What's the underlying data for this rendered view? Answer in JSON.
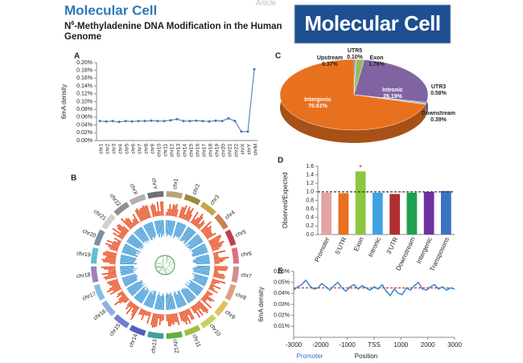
{
  "header": {
    "journal": "Molecular Cell",
    "article_type": "Article",
    "title_prefix": "N",
    "title_superscript": "6",
    "title_line1": "-Methyladenine DNA Modification in the Human",
    "title_line2": "Genome",
    "logo": "Molecular Cell"
  },
  "chart_data": [
    {
      "type": "line",
      "panel": "A",
      "ylabel": "6mA density",
      "color": "#4a6fb5",
      "markers": true,
      "categories": [
        "chr1",
        "chr2",
        "chr3",
        "chr4",
        "chr5",
        "chr6",
        "chr7",
        "chr8",
        "chr9",
        "chr10",
        "chr11",
        "chr12",
        "chr13",
        "chr14",
        "chr15",
        "chr16",
        "chr17",
        "chr18",
        "chr19",
        "chr20",
        "chr21",
        "chr22",
        "chrX",
        "chrY",
        "chrM"
      ],
      "values": [
        0.05,
        0.049,
        0.05,
        0.048,
        0.05,
        0.049,
        0.05,
        0.05,
        0.051,
        0.05,
        0.05,
        0.052,
        0.055,
        0.05,
        0.05,
        0.051,
        0.05,
        0.049,
        0.051,
        0.05,
        0.057,
        0.05,
        0.023,
        0.023,
        0.183
      ],
      "ylim": [
        0,
        0.2
      ],
      "yticks": [
        {
          "value": 0,
          "label": "0.00%"
        },
        {
          "value": 0.02,
          "label": "0.02%"
        },
        {
          "value": 0.04,
          "label": "0.04%"
        },
        {
          "value": 0.06,
          "label": "0.06%"
        },
        {
          "value": 0.08,
          "label": "0.08%"
        },
        {
          "value": 0.1,
          "label": "0.10%"
        },
        {
          "value": 0.12,
          "label": "0.12%"
        },
        {
          "value": 0.14,
          "label": "0.14%"
        },
        {
          "value": 0.16,
          "label": "0.16%"
        },
        {
          "value": 0.18,
          "label": "0.18%"
        },
        {
          "value": 0.2,
          "label": "0.20%"
        }
      ]
    },
    {
      "type": "circos",
      "panel": "B",
      "labels": [
        "chr1",
        "chr2",
        "chr3",
        "chr4",
        "chr5",
        "chr6",
        "chr7",
        "chr8",
        "chr9",
        "chr10",
        "chr11",
        "chr12",
        "chr13",
        "chr14",
        "chr15",
        "chr16",
        "chr17",
        "chr18",
        "chr19",
        "chr20",
        "chr21",
        "chr22",
        "chrX",
        "chrY"
      ]
    },
    {
      "type": "pie",
      "panel": "C",
      "three_d": true,
      "categories": [
        "Upstream",
        "UTR5",
        "Exon",
        "Intronic",
        "UTR3",
        "Downstream",
        "Intergenic"
      ],
      "values": [
        0.37,
        0.1,
        1.76,
        26.19,
        0.58,
        0.39,
        70.61
      ],
      "value_labels": [
        "0.37%",
        "0.10%",
        "1.76%",
        "26.19%",
        "0.58%",
        "0.39%",
        "70.61%"
      ],
      "colors": [
        "#4f7fbf",
        "#c0504d",
        "#9bbb59",
        "#8064a2",
        "#4bacc6",
        "#f79646",
        "#e8711f"
      ]
    },
    {
      "type": "bar",
      "panel": "D",
      "ylabel": "Observed/Expected",
      "categories": [
        "Promoter",
        "5'UTR",
        "Exon",
        "Intronic",
        "3'UTR",
        "Downstream",
        "Intergenic",
        "Transposons"
      ],
      "values": [
        0.98,
        0.97,
        1.48,
        0.98,
        0.95,
        0.98,
        1.0,
        1.02
      ],
      "colors": [
        "#e3a3a3",
        "#e8711f",
        "#8dc63f",
        "#3ea3e0",
        "#b02e2e",
        "#1fa04f",
        "#7030a0",
        "#3a74c2"
      ],
      "ylim": [
        0,
        1.6
      ],
      "yticks": [
        {
          "value": 0,
          "label": "0.0"
        },
        0.2,
        0.4,
        0.6,
        0.8,
        {
          "value": 1,
          "label": "1.0"
        },
        1.2,
        1.4,
        1.6
      ],
      "reference_line": 1,
      "annotation": "*"
    },
    {
      "type": "line",
      "panel": "E",
      "ylabel": "6mA density",
      "xlabel": "Position",
      "annotation": "Promoter",
      "color": "#3f8fd0",
      "x": [
        -3000,
        -2850,
        -2700,
        -2550,
        -2400,
        -2250,
        -2100,
        -1950,
        -1800,
        -1650,
        -1500,
        -1350,
        -1200,
        -1050,
        -900,
        -750,
        -600,
        -450,
        -300,
        -150,
        0,
        150,
        300,
        450,
        600,
        750,
        900,
        1050,
        1200,
        1350,
        1500,
        1650,
        1800,
        1950,
        2100,
        2250,
        2400,
        2550,
        2700,
        2850,
        3000
      ],
      "values": [
        0.043,
        0.046,
        0.048,
        0.052,
        0.047,
        0.044,
        0.045,
        0.049,
        0.046,
        0.043,
        0.047,
        0.05,
        0.045,
        0.042,
        0.046,
        0.048,
        0.044,
        0.047,
        0.045,
        0.043,
        0.046,
        0.044,
        0.048,
        0.042,
        0.038,
        0.044,
        0.04,
        0.039,
        0.045,
        0.043,
        0.047,
        0.05,
        0.044,
        0.043,
        0.046,
        0.048,
        0.044,
        0.046,
        0.043,
        0.045,
        0.044
      ],
      "xlim": [
        -3000,
        3000
      ],
      "xticks": [
        -3000,
        -2000,
        -1000,
        {
          "value": 0,
          "label": "TSS"
        },
        1000,
        2000,
        3000
      ],
      "ylim": [
        0,
        0.06
      ],
      "yticks": [
        {
          "value": 0.01,
          "label": "0.01%"
        },
        {
          "value": 0.02,
          "label": "0.02%"
        },
        {
          "value": 0.03,
          "label": "0.03%"
        },
        {
          "value": 0.04,
          "label": "0.04%"
        },
        {
          "value": 0.05,
          "label": "0.05%"
        },
        {
          "value": 0.06,
          "label": "0.06%"
        }
      ],
      "reference_line": 0.045,
      "reference_color": "#e03030"
    }
  ]
}
